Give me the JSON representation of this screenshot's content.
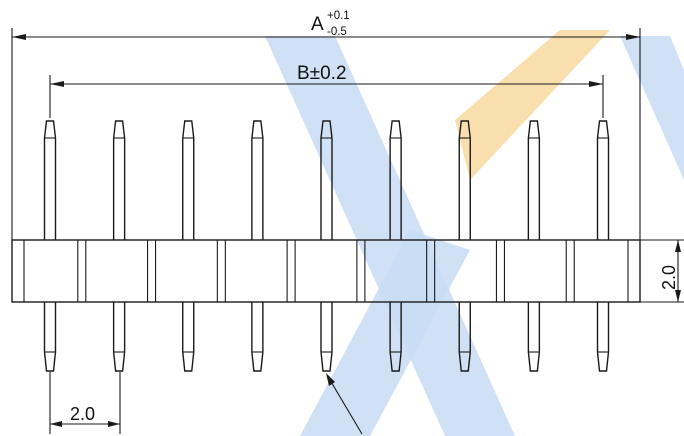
{
  "drawing": {
    "pin_count": 9,
    "dimensions": {
      "overall_length": {
        "label": "A",
        "tolerance_upper": "+0.1",
        "tolerance_lower": "-0.5"
      },
      "pin_span": {
        "label": "B±0.2"
      },
      "pitch": {
        "label": "2.0"
      },
      "body_height": {
        "label": "2.0"
      }
    },
    "watermark": {
      "colors": {
        "blue": "#c8dcf4",
        "orange": "#f7dca4"
      }
    }
  }
}
